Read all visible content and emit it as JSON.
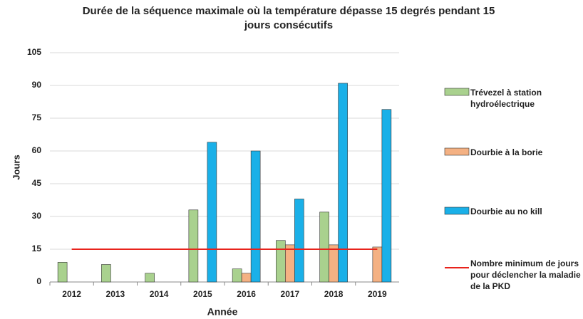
{
  "chart_data": {
    "type": "bar",
    "title": "Durée de la séquence maximale où la température dépasse 15 degrés pendant 15 jours consécutifs",
    "x_label": "Année",
    "y_label": "Jours",
    "categories": [
      "2012",
      "2013",
      "2014",
      "2015",
      "2016",
      "2017",
      "2018",
      "2019"
    ],
    "series": [
      {
        "name": "Trévezel à station hydroélectrique",
        "color": "#a9d18e",
        "values": [
          9,
          8,
          4,
          33,
          6,
          19,
          32,
          0
        ]
      },
      {
        "name": "Dourbie à la borie",
        "color": "#f4b183",
        "values": [
          0,
          0,
          0,
          0,
          4,
          17,
          17,
          16
        ]
      },
      {
        "name": "Dourbie au no kill",
        "color": "#1ab0e8",
        "values": [
          0,
          0,
          0,
          64,
          60,
          38,
          91,
          79
        ]
      }
    ],
    "reference_line": {
      "name": "Nombre minimum de jours pour déclencher la maladie de la PKD",
      "color": "#e8231c",
      "value": 15
    },
    "ylim": [
      0,
      105
    ],
    "yticks": [
      0,
      15,
      30,
      45,
      60,
      75,
      90,
      105
    ],
    "grid": true
  }
}
